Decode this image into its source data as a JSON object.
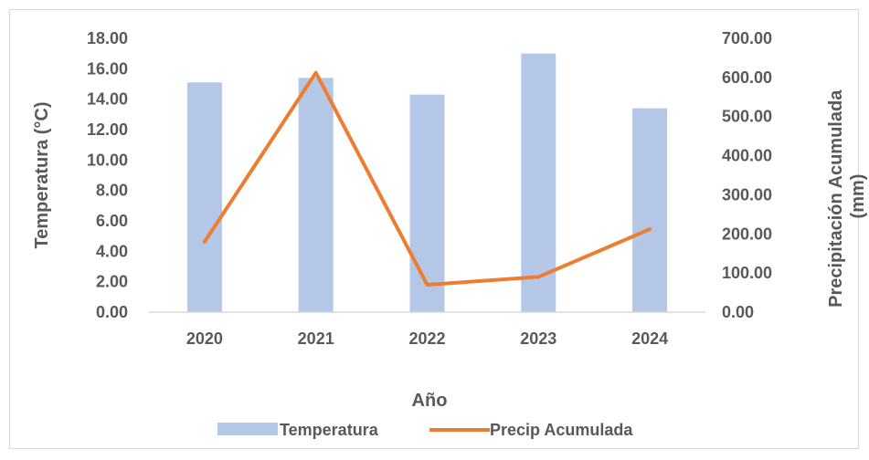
{
  "chart_data": {
    "type": "bar",
    "categories": [
      "2020",
      "2021",
      "2022",
      "2023",
      "2024"
    ],
    "series": [
      {
        "name": "Temperatura",
        "type": "bar",
        "axis": "left",
        "color": "#b4c7e7",
        "values": [
          15.1,
          15.4,
          14.3,
          17.0,
          13.4
        ]
      },
      {
        "name": "Precip Acumulada",
        "type": "line",
        "axis": "right",
        "color": "#ed7d31",
        "values": [
          180,
          612,
          70,
          90,
          212
        ]
      }
    ],
    "xlabel": "Año",
    "ylabel": "Temperatura (°C)",
    "y2label_line1": "Precipitación Acumulada",
    "y2label_line2": "(mm)",
    "ylim": [
      0,
      18
    ],
    "y2lim": [
      0,
      700
    ],
    "yticks": [
      "0.00",
      "2.00",
      "4.00",
      "6.00",
      "8.00",
      "10.00",
      "12.00",
      "14.00",
      "16.00",
      "18.00"
    ],
    "y2ticks": [
      "0.00",
      "100.00",
      "200.00",
      "300.00",
      "400.00",
      "500.00",
      "600.00",
      "700.00"
    ],
    "grid": false,
    "legend_position": "bottom"
  }
}
